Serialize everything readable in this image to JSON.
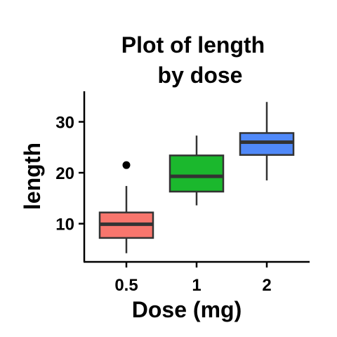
{
  "chart_data": {
    "type": "box",
    "title_lines": [
      "Plot of length",
      "by dose"
    ],
    "xlabel": "Dose (mg)",
    "ylabel": "length",
    "categories": [
      "0.5",
      "1",
      "2"
    ],
    "ylim": [
      2.5,
      36
    ],
    "yticks": [
      10,
      20,
      30
    ],
    "grid": false,
    "legend": "none",
    "boxes": [
      {
        "category": "0.5",
        "whisker_low": 4.2,
        "q1": 7.2,
        "median": 9.9,
        "q3": 12.2,
        "whisker_high": 17.4,
        "outliers": [
          21.5
        ],
        "color": "#F8766D"
      },
      {
        "category": "1",
        "whisker_low": 13.6,
        "q1": 16.3,
        "median": 19.3,
        "q3": 23.4,
        "whisker_high": 27.3,
        "outliers": [],
        "color": "#1BB82D"
      },
      {
        "category": "2",
        "whisker_low": 18.5,
        "q1": 23.5,
        "median": 26.0,
        "q3": 27.8,
        "whisker_high": 33.9,
        "outliers": [],
        "color": "#5089F9"
      }
    ]
  }
}
